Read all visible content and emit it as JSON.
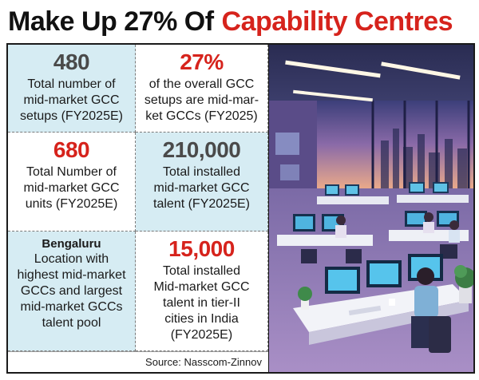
{
  "headline": {
    "part1": "Make Up 27% Of",
    "part2": "Capability Centres"
  },
  "stats": [
    {
      "value": "480",
      "description": "Total number of\nmid-market GCC\nsetups (FY2025E)"
    },
    {
      "value": "27%",
      "description": "of the overall GCC\nsetups are mid-mar-\nket GCCs (FY2025)"
    },
    {
      "value": "680",
      "description": "Total Number of\nmid-market GCC\nunits (FY2025E)"
    },
    {
      "value": "210,000",
      "description": "Total installed\nmid-market GCC\ntalent (FY2025E)"
    },
    {
      "place": "Bengaluru",
      "description": "Location with\nhighest mid-market\nGCCs and largest\nmid-market GCCs\ntalent pool"
    },
    {
      "value": "15,000",
      "description": "Total installed\nMid-market GCC\ntalent in tier-II\ncities in India\n(FY2025E)"
    }
  ],
  "source": "Source: Nasscom-Zinnov",
  "colors": {
    "headline_red": "#d6231c",
    "value_red": "#d6231c",
    "value_gray": "#4a4a4a",
    "cell_blue": "#d6ecf3"
  },
  "illustration": "office-workspace-illustration"
}
